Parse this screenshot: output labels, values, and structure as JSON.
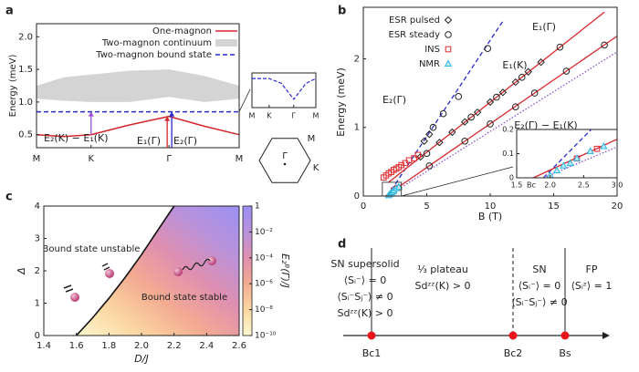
{
  "panel_labels": [
    "a",
    "b",
    "c",
    "d"
  ],
  "chart_data": [
    {
      "type": "line",
      "ylabel": "Energy (meV)",
      "xlim": [
        0,
        2.6
      ],
      "xticks": [
        {
          "value": 0,
          "label": "M"
        },
        {
          "value": 0.7,
          "label": "K"
        },
        {
          "value": 1.7,
          "label": "Γ"
        },
        {
          "value": 2.6,
          "label": "M"
        }
      ],
      "ylim": [
        0.3,
        2.2
      ],
      "yticks": [
        0.5,
        {
          "value": 1,
          "label": "1.0"
        },
        1.5,
        {
          "value": 2,
          "label": "2.0"
        }
      ],
      "series": [
        {
          "name": "One-magnon",
          "type": "line",
          "color": "#d7262b",
          "x": [
            0,
            0.35,
            0.7,
            1.2,
            1.7,
            2.15,
            2.6
          ],
          "values": [
            0.5,
            0.47,
            0.5,
            0.65,
            0.78,
            0.63,
            0.5
          ]
        },
        {
          "name": "Two-magnon continuum",
          "type": "band",
          "color": "#d4d4d4",
          "x": [
            0,
            0.35,
            0.7,
            1.2,
            1.7,
            2.15,
            2.6
          ],
          "lower": [
            1.05,
            1.02,
            1.0,
            1.0,
            1.08,
            1.0,
            1.05
          ],
          "upper": [
            1.25,
            1.38,
            1.42,
            1.48,
            1.5,
            1.4,
            1.25
          ]
        },
        {
          "name": "Two-magnon bound state",
          "type": "line",
          "dashed": true,
          "color": "#2b2bd0",
          "x": [
            0,
            2.6
          ],
          "values": [
            0.85,
            0.85
          ]
        }
      ],
      "annotations": [
        {
          "text": "E₂(K) − E₁(K)",
          "color": "#9a4fd8"
        },
        {
          "text": "E₁(Γ)",
          "color": "#d7262b"
        },
        {
          "text": "E₂(Γ)",
          "color": "#2b2bd0"
        }
      ],
      "inset": {
        "xlim": [
          0,
          2.6
        ],
        "xticks": [
          {
            "value": 0,
            "label": "M"
          },
          {
            "value": 0.7,
            "label": "K"
          },
          {
            "value": 1.7,
            "label": "Γ"
          },
          {
            "value": 2.6,
            "label": "M"
          }
        ],
        "ylim": [
          0.82,
          0.87
        ],
        "x": [
          0,
          0.7,
          1.2,
          1.7,
          2.2,
          2.6
        ],
        "values": [
          0.862,
          0.862,
          0.855,
          0.832,
          0.855,
          0.862
        ],
        "color": "#2b2bd0"
      },
      "brillouin_zone": {
        "center": "Γ",
        "edge": "M",
        "corner": "K"
      }
    },
    {
      "type": "scatter",
      "xlabel": "B (T)",
      "ylabel": "Energy (meV)",
      "xlim": [
        0,
        20
      ],
      "xticks": [
        0,
        5,
        10,
        15,
        20
      ],
      "ylim": [
        0,
        2.75
      ],
      "yticks": [
        0,
        1,
        2
      ],
      "series": [
        {
          "name": "ESR pulsed",
          "marker": "diamond",
          "color": "#222222",
          "x": [
            4.8,
            5.2,
            4.5,
            6,
            7,
            8,
            9,
            10,
            11,
            12,
            13,
            14
          ],
          "values": [
            0.8,
            0.9,
            0.57,
            0.78,
            0.93,
            1.08,
            1.22,
            1.37,
            1.51,
            1.66,
            1.81,
            1.95
          ]
        },
        {
          "name": "ESR steady",
          "marker": "circle",
          "color": "#222222",
          "x": [
            5.5,
            6.3,
            7.5,
            9.8,
            5,
            8.5,
            10.5,
            12.5,
            15.5,
            5.2,
            8,
            10,
            12,
            13.5,
            16,
            19
          ],
          "values": [
            1.0,
            1.2,
            1.45,
            2.15,
            0.62,
            1.15,
            1.44,
            1.73,
            2.17,
            0.44,
            0.8,
            1.05,
            1.3,
            1.5,
            1.82,
            2.2
          ]
        },
        {
          "name": "INS",
          "marker": "square",
          "color": "#e0262b",
          "x": [
            1.6,
            1.8,
            2.0,
            2.2,
            2.4,
            2.6,
            2.8,
            3.0,
            3.3,
            3.6,
            4.0,
            4.3,
            2.4,
            2.7
          ],
          "values": [
            0.27,
            0.3,
            0.33,
            0.35,
            0.38,
            0.4,
            0.42,
            0.45,
            0.48,
            0.52,
            0.55,
            0.6,
            0.08,
            0.12
          ]
        },
        {
          "name": "NMR",
          "marker": "triangle",
          "color": "#29b6e0",
          "x": [
            2.0,
            2.1,
            2.2,
            2.3,
            2.4,
            2.6,
            2.8
          ],
          "values": [
            0.01,
            0.03,
            0.05,
            0.06,
            0.08,
            0.11,
            0.13
          ]
        }
      ],
      "lines": [
        {
          "name": "E₂(Γ)",
          "color": "#2b2bd0",
          "style": "dashed",
          "x": [
            1.9,
            11
          ],
          "values": [
            0,
            2.55
          ]
        },
        {
          "name": "E₁(Γ)",
          "color": "#d7262b",
          "style": "solid",
          "x": [
            2,
            19
          ],
          "values": [
            0.2,
            2.68
          ]
        },
        {
          "name": "E₁(K)",
          "color": "#d7262b",
          "style": "solid",
          "x": [
            1.75,
            20
          ],
          "values": [
            0,
            2.33
          ]
        },
        {
          "name": "E₂(Γ) − E₁(K)",
          "color": "#8a4fd8",
          "style": "dotted",
          "x": [
            1.9,
            20
          ],
          "values": [
            0,
            2.1
          ]
        }
      ],
      "inset": {
        "xlim": [
          1.5,
          3
        ],
        "xticks": [
          1.5,
          {
            "value": 2,
            "label": "2.0"
          },
          2.5,
          {
            "value": 3,
            "label": "3.0"
          }
        ],
        "ylim": [
          0,
          0.2
        ],
        "yticks": [
          0,
          0.1,
          0.2
        ],
        "annotation": "Bc"
      }
    },
    {
      "type": "heatmap",
      "xlabel": "D/J",
      "ylabel": "Δ",
      "xlim": [
        1.4,
        2.6
      ],
      "xticks": [
        1.4,
        1.6,
        1.8,
        {
          "value": 2,
          "label": "2.0"
        },
        2.2,
        2.4,
        2.6
      ],
      "ylim": [
        0,
        4
      ],
      "yticks": [
        0,
        1,
        2,
        3,
        4
      ],
      "boundary": {
        "x": [
          1.6,
          1.7,
          1.8,
          1.9,
          2.0,
          2.1,
          2.2
        ],
        "values": [
          0,
          0.55,
          1.15,
          1.8,
          2.5,
          3.25,
          4
        ]
      },
      "regions": [
        "Bound state unstable",
        "Bound state stable"
      ],
      "colorbar": {
        "label": "E₂ᴮ(Γ)/J",
        "log": true,
        "lim": [
          1e-10,
          1
        ],
        "ticks": [
          {
            "value": 1e-10,
            "label": "10⁻¹⁰"
          },
          {
            "value": 1e-08,
            "label": "10⁻⁸"
          },
          {
            "value": 1e-06,
            "label": "10⁻⁶"
          },
          {
            "value": 0.0001,
            "label": "10⁻⁴"
          },
          {
            "value": 0.01,
            "label": "10⁻²"
          },
          1
        ],
        "colormap": [
          "#fdf8d0",
          "#fbd7a2",
          "#f3ab92",
          "#df8fb0",
          "#b892dc",
          "#9a90f2"
        ]
      }
    }
  ],
  "diagram": {
    "points": [
      {
        "label": "Bc1",
        "dashed": false
      },
      {
        "label": "Bc2",
        "dashed": true
      },
      {
        "label": "Bs",
        "dashed": false
      }
    ],
    "regions": [
      [
        "SN supersolid",
        "⟨Sᵢ⁻⟩ = 0",
        "⟨Sᵢ⁻Sⱼ⁻⟩ ≠ 0",
        "Sdᶻᶻ(K) > 0"
      ],
      [
        "⅓ plateau",
        "Sdᶻᶻ(K) > 0"
      ],
      [
        "SN",
        "⟨Sᵢ⁻⟩ = 0",
        "⟨Sᵢ⁻Sⱼ⁻⟩ ≠ 0"
      ],
      [
        "FP",
        "⟨Sᵢᶻ⟩ = 1"
      ]
    ]
  }
}
